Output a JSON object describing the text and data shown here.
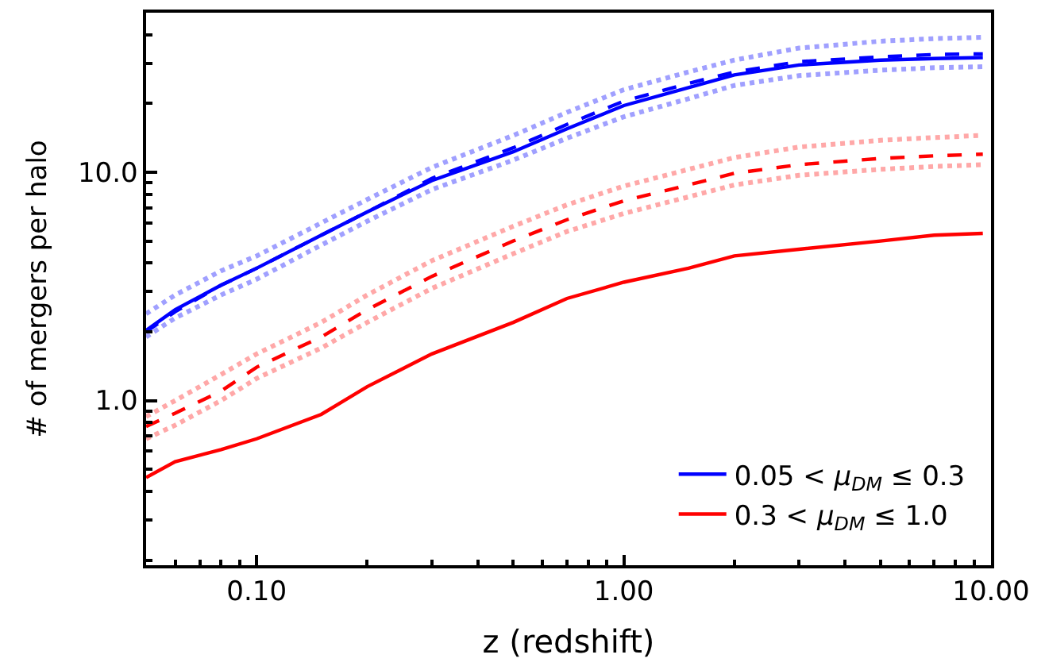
{
  "chart_data": {
    "type": "line",
    "xlabel": "z (redshift)",
    "ylabel": "# of mergers per halo",
    "log": "xy",
    "x": [
      0.05,
      0.06,
      0.08,
      0.1,
      0.15,
      0.2,
      0.3,
      0.5,
      0.7,
      1,
      1.5,
      2,
      3,
      5,
      7,
      9.5
    ],
    "xlim": [
      0.05,
      10
    ],
    "xticks": [
      {
        "value": 0.1,
        "label": "0.10"
      },
      {
        "value": 1,
        "label": "1.00"
      },
      {
        "value": 10,
        "label": "10.00"
      }
    ],
    "ylim": [
      0.19,
      50
    ],
    "yticks": [
      {
        "value": 1,
        "label": "1.0"
      },
      {
        "value": 10,
        "label": "10.0"
      }
    ],
    "legend": "bottom right",
    "series": [
      {
        "name": "0.05 < μ$_{DM}$ ≤ 0.3",
        "color": "#0000ff",
        "line_style": "solid",
        "values": [
          2.03,
          2.5,
          3.2,
          3.8,
          5.3,
          6.7,
          9.2,
          12.3,
          15.5,
          19.6,
          23.5,
          26.7,
          29.5,
          31,
          31.5,
          31.8
        ]
      },
      {
        "color": "#0000ff",
        "line_style": "dashed",
        "values": [
          2.0,
          2.45,
          3.2,
          3.8,
          5.3,
          6.7,
          9.4,
          12.8,
          16.2,
          20.5,
          24.5,
          27.5,
          30.5,
          32,
          32.8,
          33
        ]
      },
      {
        "color": "#a0a0ff",
        "line_style": "dotted",
        "values": [
          2.4,
          2.9,
          3.7,
          4.3,
          6.0,
          7.6,
          10.5,
          14.5,
          18.3,
          23,
          27.5,
          31,
          35,
          37.5,
          38.5,
          39
        ]
      },
      {
        "color": "#a0a0ff",
        "line_style": "dotted",
        "values": [
          1.9,
          2.3,
          2.9,
          3.4,
          4.8,
          6.1,
          8.4,
          11.3,
          14.1,
          17.5,
          21,
          24,
          26.5,
          28,
          28.7,
          29
        ]
      },
      {
        "name": "0.3 < μ$_{DM}$ ≤ 1.0",
        "color": "#ff0000",
        "line_style": "solid",
        "values": [
          0.46,
          0.54,
          0.61,
          0.68,
          0.87,
          1.15,
          1.6,
          2.2,
          2.8,
          3.3,
          3.8,
          4.3,
          4.6,
          5.0,
          5.3,
          5.4
        ]
      },
      {
        "color": "#ff0000",
        "line_style": "dashed",
        "values": [
          0.77,
          0.88,
          1.1,
          1.4,
          1.9,
          2.5,
          3.5,
          5.0,
          6.2,
          7.5,
          8.8,
          9.9,
          10.8,
          11.5,
          11.8,
          12
        ]
      },
      {
        "color": "#ffa8a8",
        "line_style": "dotted",
        "values": [
          0.85,
          1.0,
          1.3,
          1.6,
          2.2,
          2.9,
          4.1,
          5.8,
          7.2,
          8.7,
          10.3,
          11.6,
          12.9,
          13.8,
          14.2,
          14.5
        ]
      },
      {
        "color": "#ffa8a8",
        "line_style": "dotted",
        "values": [
          0.68,
          0.78,
          1.0,
          1.25,
          1.7,
          2.2,
          3.1,
          4.4,
          5.5,
          6.6,
          7.8,
          8.8,
          9.7,
          10.3,
          10.6,
          10.8
        ]
      }
    ]
  }
}
